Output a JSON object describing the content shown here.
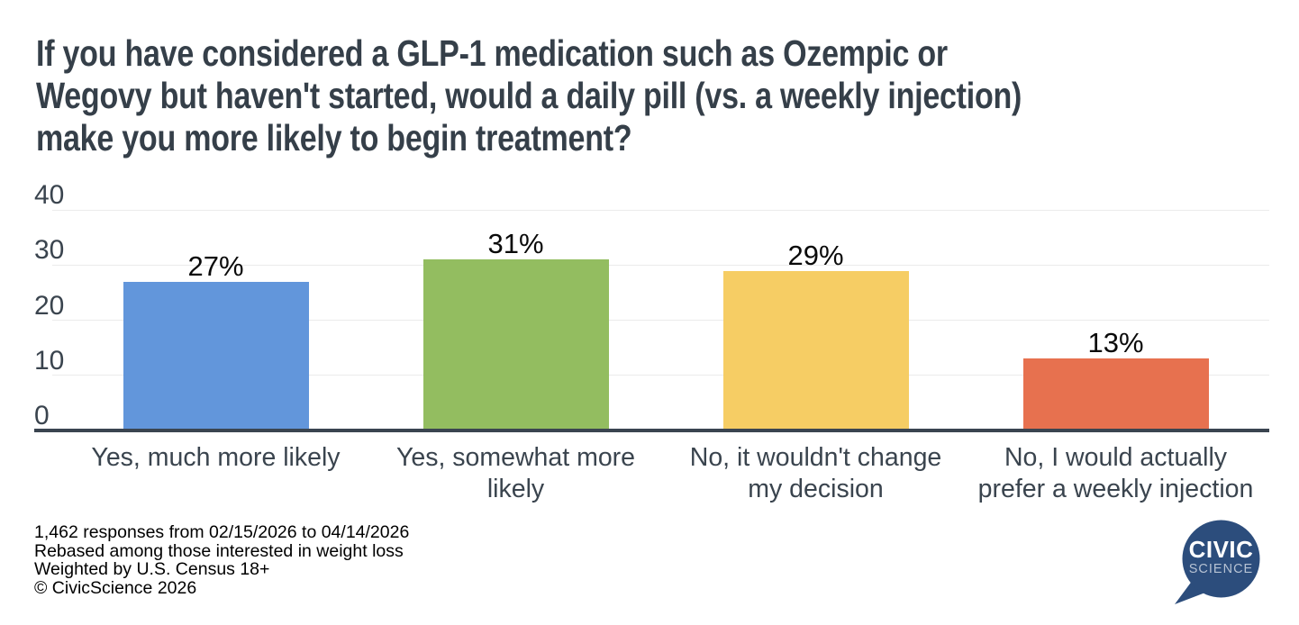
{
  "title": {
    "lines": [
      "If you have considered a GLP-1 medication such as Ozempic or",
      "Wegovy but haven't started, would a daily pill (vs. a weekly injection)",
      "make you more likely to begin treatment?"
    ]
  },
  "chart_data": {
    "type": "bar",
    "title": "If you have considered a GLP-1 medication such as Ozempic or Wegovy but haven't started, would a daily pill (vs. a weekly injection) make you more likely to begin treatment?",
    "categories": [
      "Yes, much more likely",
      "Yes, somewhat more\nlikely",
      "No, it wouldn't change\nmy decision",
      "No, I would actually\nprefer a weekly injection"
    ],
    "values": [
      27,
      31,
      29,
      13
    ],
    "value_labels": [
      "27%",
      "31%",
      "29%",
      "13%"
    ],
    "bar_colors": [
      "#6296db",
      "#93bd60",
      "#f6cd64",
      "#e7714f"
    ],
    "y_ticks": [
      0,
      10,
      20,
      30,
      40
    ],
    "ylim": [
      0,
      40
    ],
    "xlabel": "",
    "ylabel": "",
    "grid": true,
    "legend": "none",
    "value_suffix": "%"
  },
  "footer": {
    "lines": [
      "1,462 responses from 02/15/2026 to 04/14/2026",
      "Rebased among those interested in weight loss",
      "Weighted by U.S. Census 18+",
      "© CivicScience 2026"
    ]
  },
  "logo": {
    "line1": "CIVIC",
    "line2": "SCIENCE",
    "bubble_color": "#2c4d7c",
    "line1_color": "#ffffff",
    "line2_color": "#b6c2d3"
  },
  "colors": {
    "title_text": "#353f49",
    "axis_text": "#3a444e",
    "data_label": "#0a0a0a",
    "gridline": "#ebebeb",
    "axis_line": "#3a4450",
    "background": "#ffffff"
  }
}
